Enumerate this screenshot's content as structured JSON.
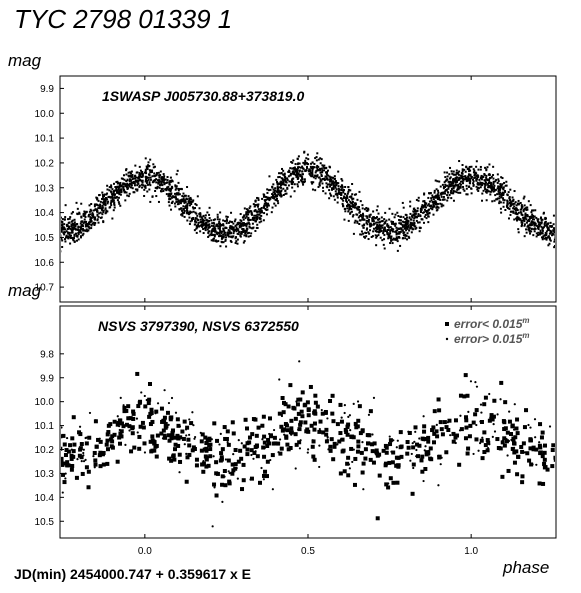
{
  "page": {
    "title": "TYC 2798 01339 1",
    "footer": "JD(min) 2454000.747  + 0.359617 x E"
  },
  "chart_data": [
    {
      "type": "scatter",
      "title": "1SWASP  J005730.88+373819.0",
      "ylabel": "mag",
      "xlabel": "",
      "xlim": [
        -0.26,
        1.26
      ],
      "ylim": [
        10.76,
        9.85
      ],
      "y_inverted": true,
      "yticks": [
        "9.9",
        "10.0",
        "10.1",
        "10.2",
        "10.3",
        "10.4",
        "10.5",
        "10.6",
        "10.7"
      ],
      "ytick_values": [
        9.9,
        10.0,
        10.1,
        10.2,
        10.3,
        10.4,
        10.5,
        10.6,
        10.7
      ],
      "series": [],
      "model": {
        "max_mag": 10.23,
        "primary_min_mag": 10.49,
        "secondary_min_mag": 10.46,
        "scatter": 0.03,
        "note_points": 3000
      }
    },
    {
      "type": "scatter",
      "title": "NSVS 3797390,  NSVS 6372550",
      "ylabel": "mag",
      "xlabel": "phase",
      "xlim": [
        -0.26,
        1.26
      ],
      "ylim": [
        10.57,
        9.6
      ],
      "y_inverted": true,
      "xticks": [
        "0.0",
        "0.5",
        "1.0"
      ],
      "xtick_values": [
        0.0,
        0.5,
        1.0
      ],
      "yticks": [
        "9.8",
        "9.9",
        "10.0",
        "10.1",
        "10.2",
        "10.3",
        "10.4",
        "10.5"
      ],
      "ytick_values": [
        9.8,
        9.9,
        10.0,
        10.1,
        10.2,
        10.3,
        10.4,
        10.5
      ],
      "legend": {
        "position": "top-right",
        "items": [
          {
            "marker": "square",
            "label": "error< 0.015",
            "superscript": "m"
          },
          {
            "marker": "dot",
            "label": "error> 0.015",
            "superscript": "m"
          }
        ]
      },
      "series": [
        {
          "name": "error< 0.015m",
          "marker": "square"
        },
        {
          "name": "error> 0.015m",
          "marker": "dot"
        }
      ],
      "model": {
        "max_mag": 10.08,
        "primary_min_mag": 10.24,
        "secondary_min_mag": 10.22,
        "scatter": 0.07
      }
    }
  ]
}
